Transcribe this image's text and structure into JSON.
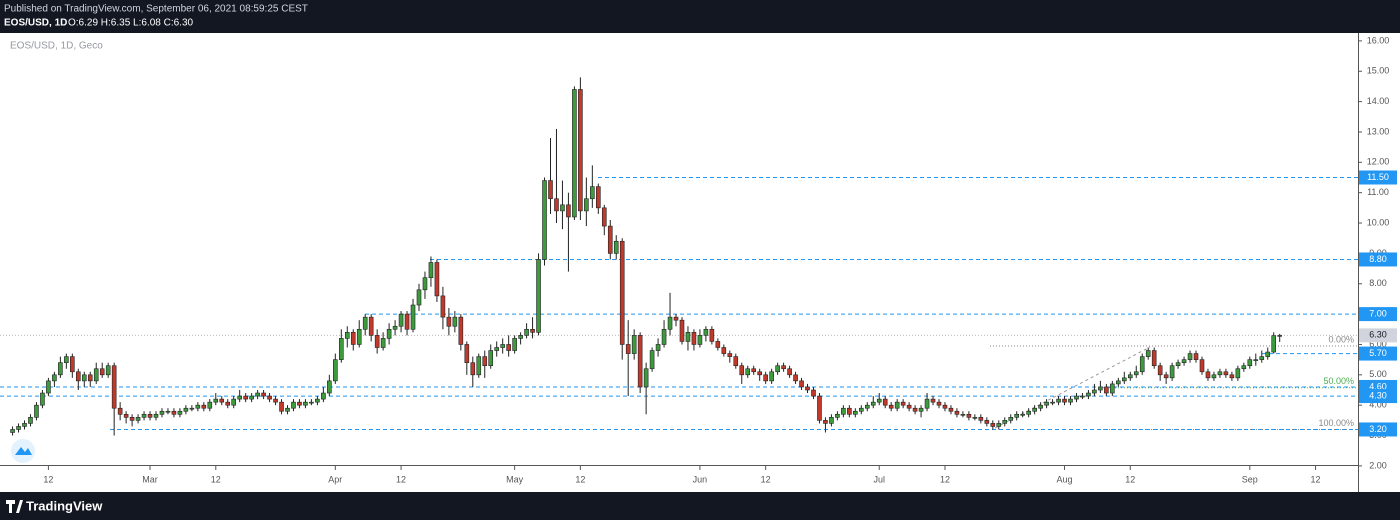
{
  "header": {
    "published": "Published on TradingView.com, September 06, 2021 08:59:25 CEST",
    "symbol": "EOS/USD, 1D",
    "ohlc": "O:6.29 H:6.35 L:6.08 C:6.30"
  },
  "footer": {
    "brand": "TradingView"
  },
  "chart_data": {
    "type": "candlestick",
    "watermark": "EOS/USD, 1D, Geco",
    "up_color": "#3d9a3d",
    "down_color": "#c0392b",
    "level_color": "#2196f3",
    "xlim": [
      -2.1,
      225.1
    ],
    "ylim": [
      1.14,
      16.26
    ],
    "xticks": [
      {
        "value": 6,
        "label": "12"
      },
      {
        "value": 23,
        "label": "Mar"
      },
      {
        "value": 34,
        "label": "12"
      },
      {
        "value": 54,
        "label": "Apr"
      },
      {
        "value": 65,
        "label": "12"
      },
      {
        "value": 84,
        "label": "May"
      },
      {
        "value": 95,
        "label": "12"
      },
      {
        "value": 115,
        "label": "Jun"
      },
      {
        "value": 126,
        "label": "12"
      },
      {
        "value": 145,
        "label": "Jul"
      },
      {
        "value": 156,
        "label": "12"
      },
      {
        "value": 176,
        "label": "Aug"
      },
      {
        "value": 187,
        "label": "12"
      },
      {
        "value": 207,
        "label": "Sep"
      },
      {
        "value": 218,
        "label": "12"
      }
    ],
    "yticks": [
      {
        "value": 2,
        "label": "2.00"
      },
      {
        "value": 3,
        "label": "3.00"
      },
      {
        "value": 4,
        "label": "4.00"
      },
      {
        "value": 5,
        "label": "5.00"
      },
      {
        "value": 6,
        "label": "6.00"
      },
      {
        "value": 7,
        "label": "7.00"
      },
      {
        "value": 8,
        "label": "8.00"
      },
      {
        "value": 9,
        "label": "9.00"
      },
      {
        "value": 10,
        "label": "10.00"
      },
      {
        "value": 11,
        "label": "11.00"
      },
      {
        "value": 12,
        "label": "12.00"
      },
      {
        "value": 13,
        "label": "13.00"
      },
      {
        "value": 14,
        "label": "14.00"
      },
      {
        "value": 15,
        "label": "15.00"
      },
      {
        "value": 16,
        "label": "16.00"
      }
    ],
    "levels": [
      {
        "value": 11.5,
        "label": "11.50"
      },
      {
        "value": 8.8,
        "label": "8.80"
      },
      {
        "value": 7,
        "label": "7.00"
      },
      {
        "value": 5.7,
        "label": "5.70"
      },
      {
        "value": 4.6,
        "label": "4.60"
      },
      {
        "value": 4.3,
        "label": "4.30"
      },
      {
        "value": 3.2,
        "label": "3.20"
      }
    ],
    "last_price": {
      "value": 6.3,
      "label": "6.30"
    },
    "fib_levels": [
      {
        "price": 5.95,
        "label": "0.00%",
        "color": "#888888"
      },
      {
        "price": 4.575,
        "label": "50.00%",
        "color": "#4caf50"
      },
      {
        "price": 3.2,
        "label": "100.00%",
        "color": "#888888"
      }
    ],
    "open": [
      3.1,
      3.2,
      3.3,
      3.4,
      3.6,
      4.0,
      4.4,
      4.8,
      5.0,
      5.4,
      5.6,
      5.1,
      4.8,
      5.0,
      4.8,
      5.2,
      5.0,
      5.3,
      3.9,
      3.7,
      3.6,
      3.5,
      3.6,
      3.7,
      3.6,
      3.7,
      3.8,
      3.8,
      3.7,
      3.8,
      3.9,
      3.9,
      4.0,
      3.9,
      4.1,
      4.2,
      4.1,
      4.0,
      4.2,
      4.3,
      4.2,
      4.3,
      4.4,
      4.3,
      4.2,
      4.1,
      3.8,
      3.9,
      4.1,
      4.0,
      4.1,
      4.1,
      4.2,
      4.4,
      4.8,
      5.5,
      6.2,
      6.4,
      6.0,
      6.5,
      6.9,
      6.3,
      5.9,
      6.2,
      6.5,
      6.6,
      7.0,
      6.5,
      7.3,
      7.8,
      8.2,
      8.7,
      7.6,
      6.9,
      6.6,
      6.9,
      6.0,
      5.4,
      5.0,
      5.6,
      5.3,
      5.8,
      5.9,
      6.0,
      5.8,
      6.2,
      6.3,
      6.5,
      6.4,
      8.8,
      11.4,
      10.8,
      10.4,
      10.6,
      10.2,
      14.4,
      10.4,
      10.8,
      11.2,
      10.5,
      9.9,
      9.0,
      9.4,
      6.0,
      5.7,
      6.3,
      4.6,
      5.2,
      5.8,
      6.0,
      6.5,
      6.9,
      6.8,
      6.1,
      6.4,
      6.0,
      6.3,
      6.5,
      6.1,
      5.9,
      5.7,
      5.6,
      5.3,
      5.0,
      5.2,
      5.1,
      5.0,
      4.8,
      5.1,
      5.3,
      5.2,
      5.0,
      4.8,
      4.6,
      4.5,
      4.3,
      3.5,
      3.4,
      3.6,
      3.7,
      3.9,
      3.7,
      3.8,
      3.9,
      4.0,
      4.1,
      4.2,
      4.0,
      3.9,
      4.1,
      4.0,
      3.9,
      3.8,
      3.9,
      4.2,
      4.1,
      4.0,
      3.9,
      3.8,
      3.7,
      3.7,
      3.6,
      3.6,
      3.5,
      3.4,
      3.3,
      3.4,
      3.5,
      3.6,
      3.7,
      3.7,
      3.8,
      3.9,
      4.0,
      4.1,
      4.1,
      4.2,
      4.1,
      4.2,
      4.3,
      4.3,
      4.4,
      4.5,
      4.6,
      4.4,
      4.7,
      4.8,
      4.9,
      5.0,
      5.1,
      5.6,
      5.8,
      5.3,
      5.0,
      4.9,
      5.3,
      5.4,
      5.5,
      5.7,
      5.5,
      5.1,
      4.9,
      5.0,
      5.1,
      5.0,
      4.9,
      5.2,
      5.3,
      5.5,
      5.5,
      5.6,
      5.75,
      6.29
    ],
    "high": [
      3.3,
      3.4,
      3.5,
      3.7,
      4.1,
      4.5,
      4.9,
      5.1,
      5.6,
      5.7,
      5.7,
      5.2,
      5.1,
      5.1,
      5.4,
      5.4,
      5.4,
      5.4,
      4.1,
      3.8,
      3.7,
      3.7,
      3.8,
      3.8,
      3.8,
      3.9,
      3.9,
      3.9,
      3.9,
      4.0,
      4.0,
      4.1,
      4.1,
      4.2,
      4.4,
      4.3,
      4.2,
      4.3,
      4.5,
      4.4,
      4.4,
      4.5,
      4.5,
      4.4,
      4.3,
      4.2,
      4.0,
      4.2,
      4.2,
      4.2,
      4.2,
      4.3,
      4.6,
      5.0,
      5.7,
      6.5,
      6.6,
      6.5,
      6.8,
      7.0,
      7.0,
      6.5,
      6.4,
      6.7,
      6.8,
      7.1,
      7.1,
      7.5,
      8.0,
      8.4,
      8.9,
      8.8,
      7.9,
      7.2,
      7.1,
      7.0,
      6.1,
      5.6,
      5.7,
      5.8,
      6.0,
      6.1,
      6.2,
      6.3,
      6.3,
      6.4,
      6.7,
      6.9,
      9.0,
      11.5,
      12.8,
      13.1,
      11.4,
      11.0,
      14.5,
      14.8,
      11.5,
      11.9,
      11.3,
      10.6,
      10.1,
      9.6,
      9.5,
      6.8,
      6.5,
      6.4,
      5.4,
      5.9,
      6.2,
      6.8,
      7.7,
      7.0,
      6.9,
      6.6,
      6.5,
      6.5,
      6.6,
      6.6,
      6.2,
      6.0,
      5.8,
      5.7,
      5.4,
      5.3,
      5.3,
      5.2,
      5.1,
      5.2,
      5.4,
      5.4,
      5.3,
      5.1,
      4.9,
      4.7,
      4.6,
      4.4,
      3.6,
      3.7,
      3.8,
      4.0,
      4.0,
      3.9,
      4.0,
      4.1,
      4.3,
      4.4,
      4.3,
      4.1,
      4.2,
      4.2,
      4.1,
      4.0,
      4.0,
      4.4,
      4.3,
      4.2,
      4.1,
      4.0,
      3.9,
      3.8,
      3.8,
      3.7,
      3.7,
      3.6,
      3.5,
      3.5,
      3.6,
      3.7,
      3.8,
      3.8,
      3.9,
      4.0,
      4.1,
      4.2,
      4.2,
      4.3,
      4.3,
      4.3,
      4.4,
      4.4,
      4.5,
      4.7,
      4.8,
      4.7,
      4.8,
      4.9,
      5.1,
      5.1,
      5.3,
      5.7,
      5.9,
      5.9,
      5.4,
      5.1,
      5.4,
      5.5,
      5.6,
      5.8,
      5.8,
      5.6,
      5.2,
      5.1,
      5.2,
      5.2,
      5.1,
      5.3,
      5.4,
      5.6,
      5.7,
      5.8,
      5.9,
      6.4,
      6.35
    ],
    "low": [
      3.0,
      3.1,
      3.2,
      3.3,
      3.5,
      3.9,
      4.3,
      4.6,
      4.9,
      5.2,
      4.9,
      4.5,
      4.6,
      4.6,
      4.7,
      4.9,
      4.9,
      3.0,
      3.5,
      3.4,
      3.3,
      3.4,
      3.5,
      3.5,
      3.5,
      3.6,
      3.7,
      3.6,
      3.6,
      3.7,
      3.8,
      3.8,
      3.8,
      3.8,
      4.0,
      4.0,
      3.9,
      3.9,
      4.1,
      4.1,
      4.1,
      4.2,
      4.2,
      4.1,
      4.0,
      3.7,
      3.7,
      3.8,
      3.9,
      3.9,
      4.0,
      4.0,
      4.1,
      4.3,
      4.7,
      5.4,
      5.9,
      5.8,
      5.9,
      6.3,
      6.1,
      5.7,
      5.8,
      6.0,
      6.3,
      6.4,
      6.3,
      6.4,
      7.1,
      7.5,
      7.9,
      7.4,
      6.5,
      6.3,
      6.4,
      5.8,
      5.0,
      4.6,
      4.9,
      4.9,
      5.2,
      5.6,
      5.7,
      5.6,
      5.7,
      6.0,
      6.2,
      6.2,
      6.3,
      8.6,
      10.3,
      10.0,
      9.8,
      8.4,
      10.1,
      10.1,
      9.9,
      10.5,
      10.3,
      9.6,
      8.8,
      8.8,
      5.5,
      4.3,
      5.5,
      4.4,
      3.7,
      5.1,
      5.6,
      5.9,
      6.3,
      6.6,
      6.0,
      5.8,
      5.8,
      5.9,
      6.1,
      6.0,
      5.8,
      5.6,
      5.4,
      5.2,
      4.7,
      4.9,
      5.0,
      4.8,
      4.7,
      4.7,
      5.0,
      5.1,
      4.9,
      4.7,
      4.5,
      4.4,
      4.2,
      3.4,
      3.1,
      3.3,
      3.5,
      3.6,
      3.6,
      3.6,
      3.7,
      3.8,
      3.9,
      4.0,
      3.9,
      3.8,
      3.8,
      3.9,
      3.8,
      3.7,
      3.6,
      3.8,
      4.0,
      3.9,
      3.8,
      3.7,
      3.6,
      3.6,
      3.5,
      3.5,
      3.4,
      3.3,
      3.2,
      3.2,
      3.3,
      3.4,
      3.5,
      3.6,
      3.6,
      3.7,
      3.8,
      3.9,
      4.0,
      4.0,
      4.0,
      4.0,
      4.1,
      4.2,
      4.2,
      4.3,
      4.4,
      4.3,
      4.3,
      4.6,
      4.7,
      4.8,
      4.9,
      5.0,
      5.5,
      5.2,
      4.8,
      4.7,
      4.8,
      5.2,
      5.3,
      5.4,
      5.4,
      5.0,
      4.8,
      4.8,
      4.9,
      4.9,
      4.8,
      4.8,
      5.1,
      5.2,
      5.3,
      5.4,
      5.5,
      5.7,
      6.08
    ],
    "close": [
      3.2,
      3.3,
      3.4,
      3.6,
      4.0,
      4.4,
      4.8,
      5.0,
      5.4,
      5.6,
      5.1,
      4.8,
      5.0,
      4.8,
      5.2,
      5.0,
      5.3,
      3.9,
      3.7,
      3.6,
      3.5,
      3.6,
      3.7,
      3.6,
      3.7,
      3.8,
      3.8,
      3.7,
      3.8,
      3.9,
      3.9,
      4.0,
      3.9,
      4.1,
      4.2,
      4.1,
      4.0,
      4.2,
      4.3,
      4.2,
      4.3,
      4.4,
      4.3,
      4.2,
      4.1,
      3.8,
      3.9,
      4.1,
      4.0,
      4.1,
      4.1,
      4.2,
      4.4,
      4.8,
      5.5,
      6.2,
      6.4,
      6.0,
      6.5,
      6.9,
      6.3,
      5.9,
      6.2,
      6.5,
      6.6,
      7.0,
      6.5,
      7.3,
      7.8,
      8.2,
      8.7,
      7.6,
      6.9,
      6.6,
      6.9,
      6.0,
      5.4,
      5.0,
      5.6,
      5.3,
      5.8,
      5.9,
      6.0,
      5.8,
      6.2,
      6.3,
      6.5,
      6.4,
      8.8,
      11.4,
      10.8,
      10.4,
      10.6,
      10.2,
      14.4,
      10.4,
      10.8,
      11.2,
      10.5,
      9.9,
      9.0,
      9.4,
      6.0,
      5.7,
      6.3,
      4.6,
      5.2,
      5.8,
      6.0,
      6.5,
      6.9,
      6.8,
      6.1,
      6.4,
      6.0,
      6.3,
      6.5,
      6.1,
      5.9,
      5.7,
      5.6,
      5.3,
      5.0,
      5.2,
      5.1,
      5.0,
      4.8,
      5.1,
      5.3,
      5.2,
      5.0,
      4.8,
      4.6,
      4.5,
      4.3,
      3.5,
      3.4,
      3.6,
      3.7,
      3.9,
      3.7,
      3.8,
      3.9,
      4.0,
      4.1,
      4.2,
      4.0,
      3.9,
      4.1,
      4.0,
      3.9,
      3.8,
      3.9,
      4.2,
      4.1,
      4.0,
      3.9,
      3.8,
      3.7,
      3.7,
      3.6,
      3.6,
      3.5,
      3.4,
      3.3,
      3.4,
      3.5,
      3.6,
      3.7,
      3.7,
      3.8,
      3.9,
      4.0,
      4.1,
      4.1,
      4.2,
      4.1,
      4.2,
      4.3,
      4.3,
      4.4,
      4.5,
      4.6,
      4.4,
      4.7,
      4.8,
      4.9,
      5.0,
      5.1,
      5.6,
      5.8,
      5.3,
      5.0,
      4.9,
      5.3,
      5.4,
      5.5,
      5.7,
      5.5,
      5.1,
      4.9,
      5.0,
      5.1,
      5.0,
      4.9,
      5.2,
      5.3,
      5.5,
      5.5,
      5.6,
      5.75,
      6.29,
      6.3
    ]
  }
}
